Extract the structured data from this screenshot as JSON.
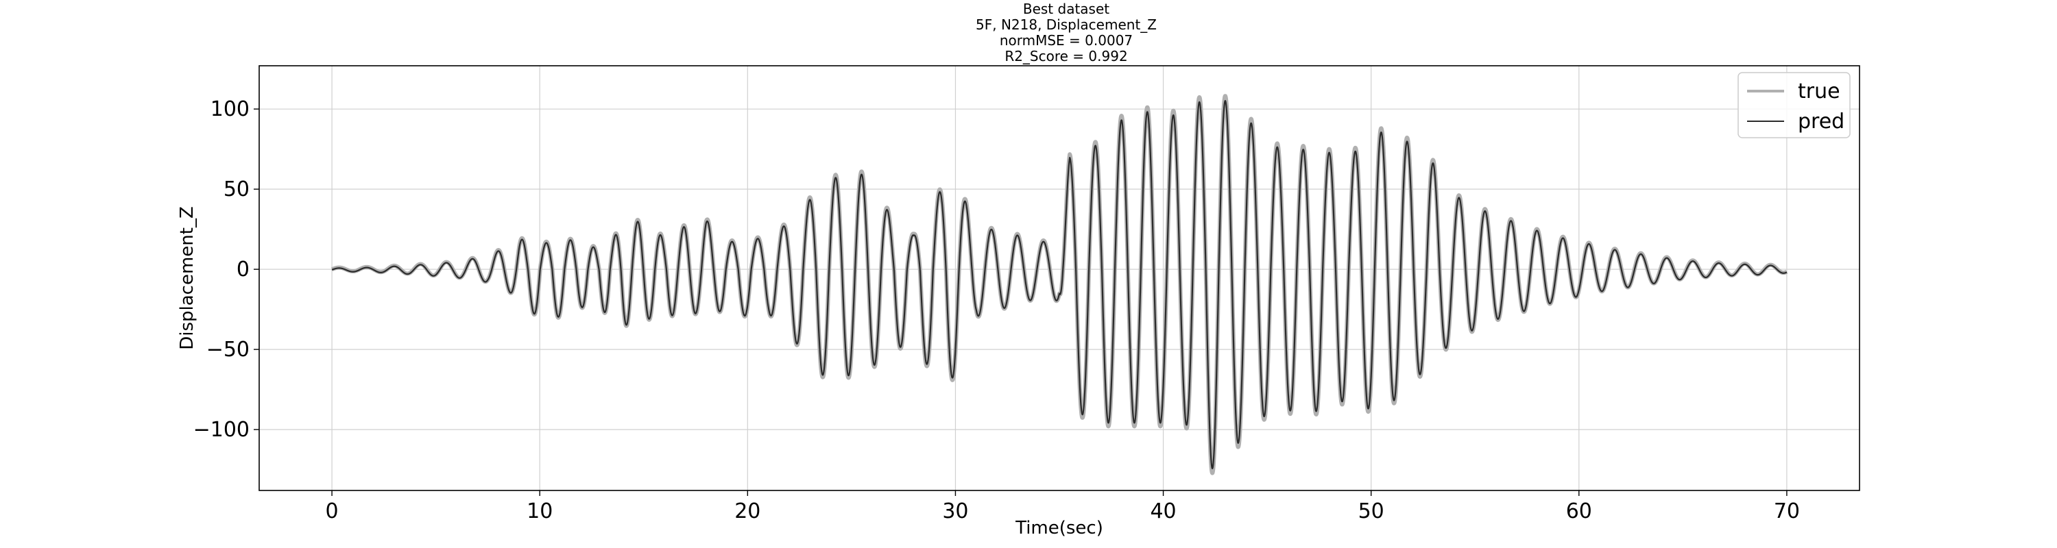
{
  "chart_data": {
    "type": "line",
    "title_lines": [
      "Best dataset",
      "5F, N218, Displacement_Z",
      "normMSE = 0.0007",
      "R2_Score = 0.992"
    ],
    "xlabel": "Time(sec)",
    "ylabel": "Displacement_Z",
    "xlim": [
      -3.5,
      73.5
    ],
    "ylim": [
      -138,
      127
    ],
    "xticks": [
      0,
      10,
      20,
      30,
      40,
      50,
      60,
      70
    ],
    "xtick_labels": [
      "0",
      "10",
      "20",
      "30",
      "40",
      "50",
      "60",
      "70"
    ],
    "yticks": [
      100,
      50,
      0,
      -50,
      -100
    ],
    "ytick_labels": [
      "100",
      "50",
      "0",
      "−50",
      "−100"
    ],
    "grid": true,
    "legend_position": "top-right",
    "colors": {
      "true": "#b0b0b0",
      "pred": "#2b2b2b"
    },
    "envelope": {
      "description_free": true,
      "t": [
        0,
        2,
        4,
        6,
        7.5,
        8.5,
        9,
        10,
        11,
        12,
        13,
        14,
        15,
        16,
        17,
        18,
        19,
        20,
        21,
        22,
        23,
        24,
        25,
        26,
        27,
        28,
        29,
        29.5,
        30,
        31,
        32,
        33,
        34,
        35,
        35.5,
        36,
        37,
        38,
        39,
        40,
        41,
        42,
        42.5,
        43,
        44,
        45,
        46,
        47,
        48,
        49,
        50,
        51,
        52,
        53,
        54,
        55,
        56,
        57,
        58,
        59,
        60,
        61,
        62,
        63,
        64,
        65,
        66,
        67,
        68,
        69,
        70
      ],
      "pos": [
        1,
        1.5,
        3,
        5,
        9,
        15,
        20,
        16,
        20,
        18,
        12,
        28,
        32,
        20,
        28,
        32,
        18,
        18,
        22,
        30,
        45,
        58,
        62,
        60,
        30,
        22,
        45,
        55,
        58,
        28,
        25,
        22,
        18,
        18,
        72,
        78,
        80,
        96,
        102,
        98,
        100,
        110,
        112,
        108,
        98,
        80,
        77,
        77,
        75,
        72,
        88,
        88,
        80,
        68,
        48,
        40,
        35,
        30,
        25,
        21,
        18,
        15,
        12,
        10,
        8,
        6,
        5,
        4,
        3.5,
        3,
        2
      ],
      "neg": [
        1,
        1.5,
        3,
        5,
        8,
        14,
        18,
        32,
        30,
        24,
        26,
        36,
        32,
        30,
        28,
        28,
        26,
        30,
        28,
        40,
        60,
        72,
        67,
        62,
        52,
        45,
        70,
        72,
        68,
        30,
        26,
        22,
        18,
        20,
        90,
        92,
        98,
        98,
        98,
        98,
        96,
        125,
        128,
        120,
        105,
        92,
        90,
        92,
        88,
        82,
        90,
        85,
        72,
        58,
        45,
        38,
        32,
        28,
        24,
        20,
        17,
        14,
        12,
        10,
        8,
        6,
        5,
        4,
        3.5,
        3,
        2
      ],
      "freq_hz": [
        0.75,
        0.75,
        0.8,
        0.8,
        0.8,
        0.85,
        0.9,
        0.85,
        0.85,
        0.9,
        0.95,
        0.95,
        0.9,
        0.9,
        0.9,
        0.85,
        0.85,
        0.8,
        0.8,
        0.8,
        0.8,
        0.8,
        0.8,
        0.8,
        0.8,
        0.8,
        0.8,
        0.8,
        0.8,
        0.8,
        0.8,
        0.8,
        0.8,
        0.8,
        0.8,
        0.8,
        0.8,
        0.8,
        0.8,
        0.8,
        0.8,
        0.8,
        0.8,
        0.8,
        0.8,
        0.8,
        0.8,
        0.8,
        0.8,
        0.8,
        0.8,
        0.8,
        0.8,
        0.8,
        0.8,
        0.8,
        0.8,
        0.8,
        0.8,
        0.8,
        0.8,
        0.8,
        0.8,
        0.8,
        0.8,
        0.8,
        0.8,
        0.8,
        0.8,
        0.8,
        0.8
      ]
    },
    "series": [
      {
        "name": "true"
      },
      {
        "name": "pred"
      }
    ]
  }
}
